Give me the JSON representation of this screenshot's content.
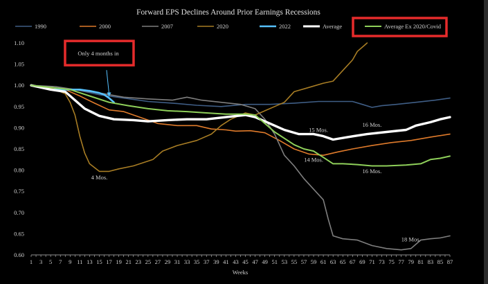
{
  "chart_data": {
    "type": "line",
    "title": "Forward EPS Declines Around Prior Earnings Recessions",
    "xlabel": "Weeks",
    "ylabel": "",
    "xlim": [
      1,
      87
    ],
    "ylim": [
      0.6,
      1.1
    ],
    "x_ticks": [
      1,
      3,
      5,
      7,
      9,
      11,
      13,
      15,
      17,
      19,
      21,
      23,
      25,
      27,
      29,
      31,
      33,
      35,
      37,
      39,
      41,
      43,
      45,
      47,
      49,
      51,
      53,
      55,
      57,
      59,
      61,
      63,
      65,
      67,
      69,
      71,
      73,
      75,
      77,
      79,
      81,
      83,
      85,
      87
    ],
    "y_ticks": [
      "0.60",
      "0.65",
      "0.70",
      "0.75",
      "0.80",
      "0.85",
      "0.90",
      "0.95",
      "1.00",
      "1.05",
      "1.10"
    ],
    "grid": false,
    "legend_position": "top",
    "series": [
      {
        "name": "1990",
        "color": "#3f5e86",
        "width": 1.6,
        "points": [
          [
            1,
            1.0
          ],
          [
            5,
            0.995
          ],
          [
            10,
            0.99
          ],
          [
            15,
            0.978
          ],
          [
            20,
            0.97
          ],
          [
            25,
            0.962
          ],
          [
            30,
            0.958
          ],
          [
            35,
            0.953
          ],
          [
            40,
            0.95
          ],
          [
            45,
            0.955
          ],
          [
            50,
            0.955
          ],
          [
            55,
            0.958
          ],
          [
            60,
            0.962
          ],
          [
            65,
            0.962
          ],
          [
            67,
            0.962
          ],
          [
            69,
            0.955
          ],
          [
            71,
            0.948
          ],
          [
            73,
            0.952
          ],
          [
            76,
            0.955
          ],
          [
            80,
            0.96
          ],
          [
            84,
            0.965
          ],
          [
            87,
            0.97
          ]
        ]
      },
      {
        "name": "2000",
        "color": "#e07b2b",
        "width": 1.6,
        "points": [
          [
            1,
            1.0
          ],
          [
            5,
            0.995
          ],
          [
            8,
            0.99
          ],
          [
            11,
            0.975
          ],
          [
            14,
            0.958
          ],
          [
            17,
            0.942
          ],
          [
            20,
            0.938
          ],
          [
            24,
            0.922
          ],
          [
            27,
            0.91
          ],
          [
            31,
            0.905
          ],
          [
            35,
            0.905
          ],
          [
            38,
            0.897
          ],
          [
            41,
            0.895
          ],
          [
            43,
            0.892
          ],
          [
            46,
            0.893
          ],
          [
            49,
            0.888
          ],
          [
            52,
            0.87
          ],
          [
            55,
            0.85
          ],
          [
            58,
            0.838
          ],
          [
            61,
            0.835
          ],
          [
            64,
            0.843
          ],
          [
            67,
            0.85
          ],
          [
            71,
            0.858
          ],
          [
            75,
            0.865
          ],
          [
            79,
            0.87
          ],
          [
            83,
            0.878
          ],
          [
            87,
            0.885
          ]
        ]
      },
      {
        "name": "2007",
        "color": "#7f7f7f",
        "width": 1.6,
        "points": [
          [
            1,
            1.0
          ],
          [
            6,
            0.997
          ],
          [
            10,
            0.99
          ],
          [
            15,
            0.982
          ],
          [
            20,
            0.972
          ],
          [
            25,
            0.968
          ],
          [
            30,
            0.965
          ],
          [
            33,
            0.972
          ],
          [
            36,
            0.965
          ],
          [
            40,
            0.96
          ],
          [
            44,
            0.955
          ],
          [
            47,
            0.945
          ],
          [
            49,
            0.92
          ],
          [
            51,
            0.885
          ],
          [
            53,
            0.835
          ],
          [
            55,
            0.81
          ],
          [
            57,
            0.78
          ],
          [
            59,
            0.755
          ],
          [
            61,
            0.73
          ],
          [
            62,
            0.685
          ],
          [
            63,
            0.645
          ],
          [
            65,
            0.638
          ],
          [
            68,
            0.635
          ],
          [
            71,
            0.622
          ],
          [
            74,
            0.615
          ],
          [
            77,
            0.612
          ],
          [
            79,
            0.615
          ],
          [
            81,
            0.635
          ],
          [
            83,
            0.638
          ],
          [
            85,
            0.64
          ],
          [
            87,
            0.645
          ]
        ]
      },
      {
        "name": "2020",
        "color": "#a87d24",
        "width": 1.6,
        "points": [
          [
            1,
            1.0
          ],
          [
            4,
            0.995
          ],
          [
            6,
            0.99
          ],
          [
            8,
            0.98
          ],
          [
            9,
            0.96
          ],
          [
            10,
            0.93
          ],
          [
            11,
            0.88
          ],
          [
            12,
            0.84
          ],
          [
            13,
            0.815
          ],
          [
            15,
            0.797
          ],
          [
            17,
            0.797
          ],
          [
            19,
            0.803
          ],
          [
            22,
            0.81
          ],
          [
            26,
            0.825
          ],
          [
            28,
            0.845
          ],
          [
            31,
            0.858
          ],
          [
            35,
            0.87
          ],
          [
            38,
            0.885
          ],
          [
            40,
            0.905
          ],
          [
            42,
            0.92
          ],
          [
            45,
            0.935
          ],
          [
            47,
            0.93
          ],
          [
            49,
            0.94
          ],
          [
            51,
            0.95
          ],
          [
            53,
            0.96
          ],
          [
            55,
            0.985
          ],
          [
            58,
            0.995
          ],
          [
            61,
            1.005
          ],
          [
            63,
            1.01
          ],
          [
            65,
            1.035
          ],
          [
            67,
            1.06
          ],
          [
            68,
            1.08
          ],
          [
            69,
            1.09
          ],
          [
            70,
            1.1
          ]
        ]
      },
      {
        "name": "2022",
        "color": "#56c1ff",
        "width": 2.6,
        "points": [
          [
            1,
            1.0
          ],
          [
            3,
            0.995
          ],
          [
            5,
            0.99
          ],
          [
            7,
            0.99
          ],
          [
            9,
            0.99
          ],
          [
            11,
            0.99
          ],
          [
            13,
            0.987
          ],
          [
            15,
            0.982
          ],
          [
            16,
            0.978
          ],
          [
            17,
            0.97
          ],
          [
            18,
            0.96
          ]
        ]
      },
      {
        "name": "Average",
        "color": "#ffffff",
        "width": 3.4,
        "points": [
          [
            1,
            1.0
          ],
          [
            5,
            0.99
          ],
          [
            8,
            0.985
          ],
          [
            10,
            0.965
          ],
          [
            12,
            0.945
          ],
          [
            15,
            0.928
          ],
          [
            18,
            0.92
          ],
          [
            22,
            0.918
          ],
          [
            25,
            0.915
          ],
          [
            29,
            0.918
          ],
          [
            33,
            0.92
          ],
          [
            37,
            0.92
          ],
          [
            41,
            0.925
          ],
          [
            45,
            0.93
          ],
          [
            47,
            0.925
          ],
          [
            49,
            0.915
          ],
          [
            51,
            0.905
          ],
          [
            53,
            0.895
          ],
          [
            56,
            0.885
          ],
          [
            59,
            0.885
          ],
          [
            61,
            0.88
          ],
          [
            63,
            0.872
          ],
          [
            66,
            0.878
          ],
          [
            70,
            0.885
          ],
          [
            74,
            0.89
          ],
          [
            78,
            0.895
          ],
          [
            80,
            0.905
          ],
          [
            83,
            0.913
          ],
          [
            85,
            0.92
          ],
          [
            87,
            0.925
          ]
        ]
      },
      {
        "name": "Average Ex 2020/Covid",
        "color": "#8fd05a",
        "width": 2.0,
        "points": [
          [
            1,
            1.0
          ],
          [
            5,
            0.995
          ],
          [
            9,
            0.99
          ],
          [
            13,
            0.975
          ],
          [
            17,
            0.96
          ],
          [
            21,
            0.952
          ],
          [
            25,
            0.945
          ],
          [
            29,
            0.94
          ],
          [
            33,
            0.938
          ],
          [
            37,
            0.935
          ],
          [
            41,
            0.932
          ],
          [
            45,
            0.932
          ],
          [
            47,
            0.93
          ],
          [
            49,
            0.91
          ],
          [
            51,
            0.89
          ],
          [
            53,
            0.875
          ],
          [
            55,
            0.86
          ],
          [
            57,
            0.85
          ],
          [
            59,
            0.845
          ],
          [
            61,
            0.83
          ],
          [
            63,
            0.815
          ],
          [
            65,
            0.815
          ],
          [
            68,
            0.813
          ],
          [
            71,
            0.81
          ],
          [
            74,
            0.81
          ],
          [
            78,
            0.812
          ],
          [
            81,
            0.815
          ],
          [
            83,
            0.825
          ],
          [
            85,
            0.828
          ],
          [
            87,
            0.833
          ]
        ]
      }
    ],
    "annotations": [
      {
        "text": "Only 4 months in",
        "x": 14.5,
        "y": 1.072,
        "boxed": true,
        "arrow_to": [
          17,
          0.97
        ]
      },
      {
        "text": "4 Mos.",
        "x": 15,
        "y": 0.778
      },
      {
        "text": "15 Mos.",
        "x": 60,
        "y": 0.89
      },
      {
        "text": "14 Mos.",
        "x": 59,
        "y": 0.82
      },
      {
        "text": "16 Mos.",
        "x": 71,
        "y": 0.902
      },
      {
        "text": "16 Mos.",
        "x": 71,
        "y": 0.793
      },
      {
        "text": "18 Mos.",
        "x": 79,
        "y": 0.632
      }
    ],
    "highlight_legend_entry": "Average Ex 2020/Covid",
    "highlight_color": "#e52b2b"
  }
}
